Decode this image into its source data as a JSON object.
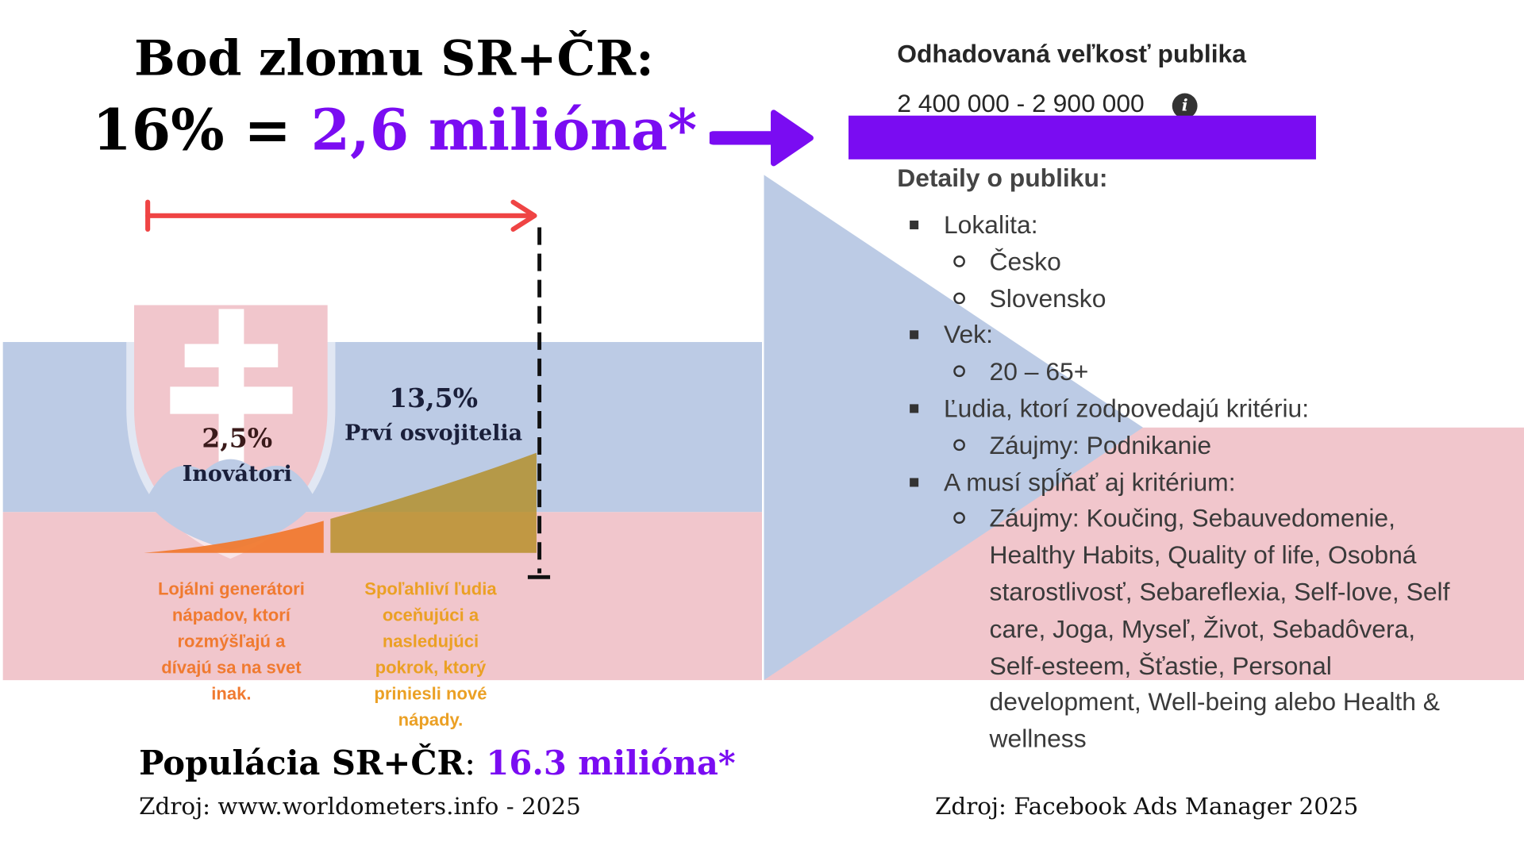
{
  "headline": {
    "line1": "Bod zlomu SR+ČR:",
    "line2_prefix": "16% = ",
    "line2_highlight": "2,6 milióna*"
  },
  "diagram": {
    "innovators": {
      "percent": "2,5%",
      "label": "Inovátori",
      "description": [
        "Lojálni generátori",
        "nápadov, ktorí",
        "rozmýšľajú a",
        "dívajú sa na svet",
        "inak."
      ]
    },
    "early_adopters": {
      "percent": "13,5%",
      "label": "Prví osvojitelia",
      "description": [
        "Spoľahliví ľudia",
        "oceňujúci a",
        "nasledujúci",
        "pokrok, ktorý",
        "priniesli nové",
        "nápady."
      ]
    }
  },
  "population": {
    "label": "Populácia SR+ČR",
    "separator": ": ",
    "value": "16.3 milióna*"
  },
  "sources": {
    "left": "Zdroj: www.worldometers.info - 2025",
    "right": "Zdroj: Facebook Ads Manager 2025"
  },
  "audience": {
    "title": "Odhadovaná veľkosť publika",
    "range": "2 400 000 - 2 900 000",
    "details_title": "Detaily o publiku:",
    "list": [
      {
        "level": 1,
        "text": "Lokalita:"
      },
      {
        "level": 2,
        "text": "Česko"
      },
      {
        "level": 2,
        "text": "Slovensko"
      },
      {
        "level": 1,
        "text": "Vek:"
      },
      {
        "level": 2,
        "text": "20 – 65+"
      },
      {
        "level": 1,
        "text": "Ľudia, ktorí zodpovedajú kritériu:"
      },
      {
        "level": 2,
        "text": "Záujmy: Podnikanie"
      },
      {
        "level": 1,
        "text": "A musí spĺňať aj kritérium:"
      },
      {
        "level": 2,
        "text": "Záujmy: Koučing, Sebauvedomenie,"
      },
      {
        "level": 3,
        "text": "Healthy Habits, Quality of life, Osobná"
      },
      {
        "level": 3,
        "text": "starostlivosť, Sebareflexia, Self-love, Self"
      },
      {
        "level": 3,
        "text": "care, Joga, Myseľ, Život, Sebadôvera,"
      },
      {
        "level": 3,
        "text": "Self-esteem, Šťastie, Personal"
      },
      {
        "level": 3,
        "text": "development, Well-being alebo Health &"
      },
      {
        "level": 3,
        "text": "wellness"
      }
    ]
  },
  "colors": {
    "purple": "#7a0cf2",
    "red_arrow": "#ef4444",
    "innovators": "#f07a30",
    "early_adopters": "#eba024",
    "sk_blue": "#bccbe5",
    "sk_red": "#f1c6cc",
    "cz_blue": "#bccbe5",
    "cz_red": "#f1c6cc"
  },
  "icons": [
    "arrow-right-icon",
    "info-icon",
    "slovak-coat-of-arms",
    "double-headed-range-arrow"
  ]
}
